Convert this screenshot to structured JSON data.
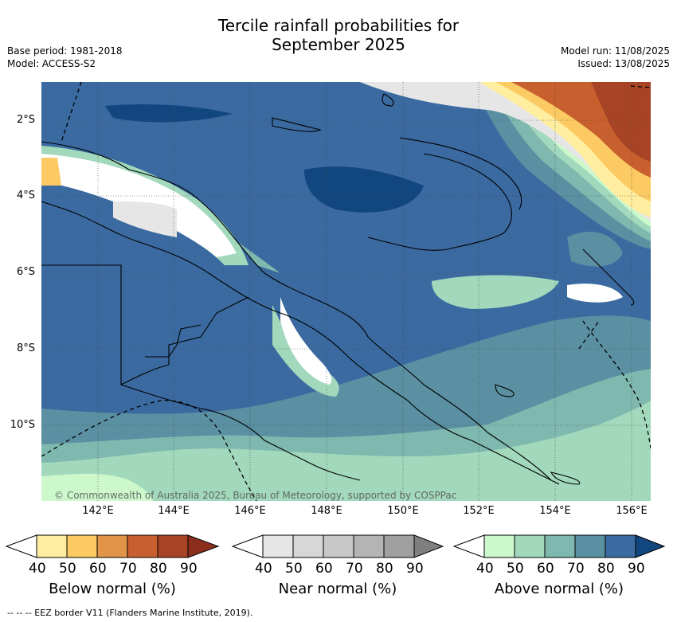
{
  "title_line1": "Tercile rainfall probabilities for",
  "title_line2": "September 2025",
  "meta_left": [
    "Base period: 1981-2018",
    "Model: ACCESS-S2"
  ],
  "meta_right": [
    "Model run: 11/08/2025",
    "Issued: 13/08/2025"
  ],
  "map": {
    "lat_ticks": [
      "2°S",
      "4°S",
      "6°S",
      "8°S",
      "10°S"
    ],
    "lon_ticks": [
      "142°E",
      "144°E",
      "146°E",
      "148°E",
      "150°E",
      "152°E",
      "154°E",
      "156°E"
    ],
    "credit": "© Commonwealth of Australia 2025, Bureau of Meteorology, supported by COSPPac"
  },
  "colorbars": [
    {
      "title": "Below normal (%)",
      "ticks": [
        "40",
        "50",
        "60",
        "70",
        "80",
        "90"
      ],
      "colors": [
        "#ffeea0",
        "#fcca62",
        "#e29548",
        "#c85f2e",
        "#a84426",
        "#8c2e1c"
      ]
    },
    {
      "title": "Near normal (%)",
      "ticks": [
        "40",
        "50",
        "60",
        "70",
        "80",
        "90"
      ],
      "colors": [
        "#e6e6e6",
        "#d7d7d7",
        "#c8c8c8",
        "#b4b4b4",
        "#a0a0a0",
        "#7f7f7f"
      ]
    },
    {
      "title": "Above normal (%)",
      "ticks": [
        "40",
        "50",
        "60",
        "70",
        "80",
        "90"
      ],
      "colors": [
        "#ccf8cc",
        "#a2d8bc",
        "#7eb8ae",
        "#5a90a2",
        "#3a6aa0",
        "#12467e"
      ]
    }
  ],
  "footnote": "--  --  -- EEZ border V11 (Flanders Marine Institute, 2019)."
}
